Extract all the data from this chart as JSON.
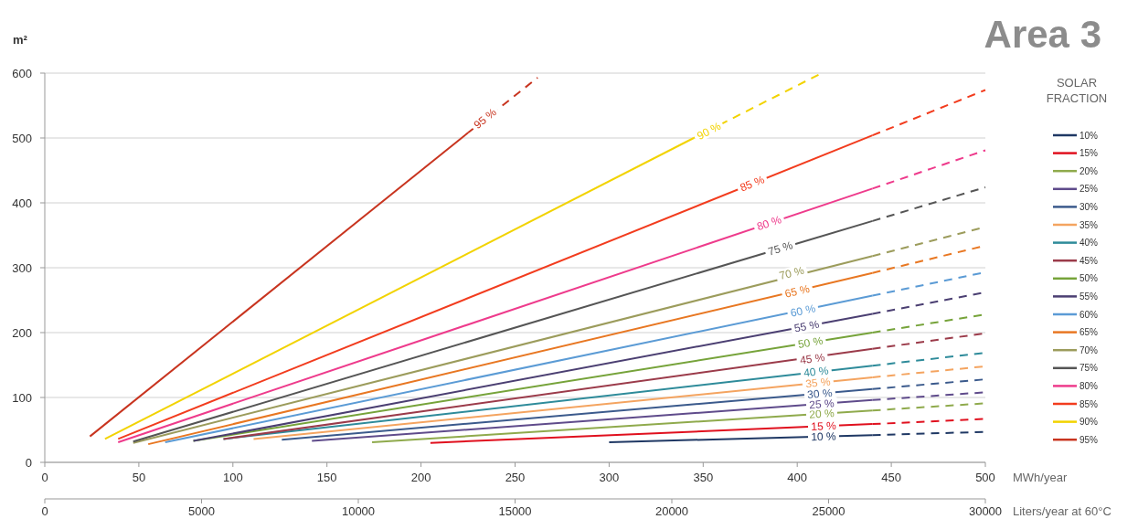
{
  "chart_data": {
    "type": "line",
    "title": "Area 3",
    "ylabel": "m²",
    "xlabel": "MWh/year",
    "x2label": "Liters/year at 60°C",
    "legend_title": "SOLAR FRACTION",
    "legend": "right",
    "grid": "y",
    "line_style": "solid",
    "marker": "none",
    "xlim": [
      0,
      500
    ],
    "xticks": [
      0,
      50,
      100,
      150,
      200,
      250,
      300,
      350,
      400,
      450,
      500
    ],
    "x2lim": [
      0,
      30000
    ],
    "x2ticks": [
      0,
      5000,
      10000,
      15000,
      20000,
      25000,
      30000
    ],
    "ylim": [
      0,
      600
    ],
    "yticks": [
      0,
      100,
      200,
      300,
      400,
      500,
      600
    ],
    "series": [
      {
        "name": "10%",
        "color": "#1f3864",
        "x": [
          300,
          440
        ],
        "values": [
          31,
          42
        ]
      },
      {
        "color": "#1f3864",
        "line_style": "dashed",
        "x": [
          440,
          500
        ],
        "values": [
          42,
          47
        ]
      },
      {
        "name": "15%",
        "color": "#e0101e",
        "x": [
          205,
          440
        ],
        "values": [
          30,
          59
        ]
      },
      {
        "color": "#e0101e",
        "line_style": "dashed",
        "x": [
          440,
          500
        ],
        "values": [
          59,
          67
        ]
      },
      {
        "name": "20%",
        "color": "#8faa4c",
        "x": [
          174,
          440
        ],
        "values": [
          31,
          80
        ]
      },
      {
        "color": "#8faa4c",
        "line_style": "dashed",
        "x": [
          440,
          500
        ],
        "values": [
          80,
          91
        ]
      },
      {
        "name": "25%",
        "color": "#5f4b8b",
        "x": [
          142,
          440
        ],
        "values": [
          33,
          96
        ]
      },
      {
        "color": "#5f4b8b",
        "line_style": "dashed",
        "x": [
          440,
          500
        ],
        "values": [
          96,
          108
        ]
      },
      {
        "name": "30%",
        "color": "#3b5a8c",
        "x": [
          126,
          440
        ],
        "values": [
          35,
          113
        ]
      },
      {
        "color": "#3b5a8c",
        "line_style": "dashed",
        "x": [
          440,
          500
        ],
        "values": [
          113,
          128
        ]
      },
      {
        "name": "35%",
        "color": "#f4a460",
        "x": [
          111,
          440
        ],
        "values": [
          36,
          131
        ]
      },
      {
        "color": "#f4a460",
        "line_style": "dashed",
        "x": [
          440,
          500
        ],
        "values": [
          131,
          148
        ]
      },
      {
        "name": "40%",
        "color": "#2e8b9a",
        "x": [
          95,
          440
        ],
        "values": [
          36,
          149
        ]
      },
      {
        "color": "#2e8b9a",
        "line_style": "dashed",
        "x": [
          440,
          500
        ],
        "values": [
          149,
          169
        ]
      },
      {
        "name": "45%",
        "color": "#9b3b4a",
        "x": [
          95,
          440
        ],
        "values": [
          36,
          175
        ]
      },
      {
        "color": "#9b3b4a",
        "line_style": "dashed",
        "x": [
          440,
          500
        ],
        "values": [
          175,
          199
        ]
      },
      {
        "name": "50%",
        "color": "#76a33a",
        "x": [
          79,
          440
        ],
        "values": [
          33,
          200
        ]
      },
      {
        "color": "#76a33a",
        "line_style": "dashed",
        "x": [
          440,
          500
        ],
        "values": [
          200,
          228
        ]
      },
      {
        "name": "55%",
        "color": "#4b3f72",
        "x": [
          79,
          440
        ],
        "values": [
          33,
          229
        ]
      },
      {
        "color": "#4b3f72",
        "line_style": "dashed",
        "x": [
          440,
          500
        ],
        "values": [
          229,
          262
        ]
      },
      {
        "name": "60%",
        "color": "#5b9bd5",
        "x": [
          64,
          440
        ],
        "values": [
          31,
          257
        ]
      },
      {
        "color": "#5b9bd5",
        "line_style": "dashed",
        "x": [
          440,
          500
        ],
        "values": [
          257,
          293
        ]
      },
      {
        "name": "65%",
        "color": "#e87722",
        "x": [
          55,
          440
        ],
        "values": [
          28,
          292
        ]
      },
      {
        "color": "#e87722",
        "line_style": "dashed",
        "x": [
          440,
          500
        ],
        "values": [
          292,
          334
        ]
      },
      {
        "name": "70%",
        "color": "#9c9c5c",
        "x": [
          47,
          440
        ],
        "values": [
          30,
          318
        ]
      },
      {
        "color": "#9c9c5c",
        "line_style": "dashed",
        "x": [
          440,
          500
        ],
        "values": [
          318,
          363
        ]
      },
      {
        "name": "75%",
        "color": "#555555",
        "x": [
          47,
          440
        ],
        "values": [
          32,
          372
        ]
      },
      {
        "color": "#555555",
        "line_style": "dashed",
        "x": [
          440,
          500
        ],
        "values": [
          372,
          424
        ]
      },
      {
        "name": "80%",
        "color": "#ee3b8c",
        "x": [
          39,
          440
        ],
        "values": [
          31,
          422
        ]
      },
      {
        "color": "#ee3b8c",
        "line_style": "dashed",
        "x": [
          440,
          500
        ],
        "values": [
          422,
          481
        ]
      },
      {
        "name": "85%",
        "color": "#f23c1e",
        "x": [
          39,
          440
        ],
        "values": [
          36,
          504
        ]
      },
      {
        "color": "#f23c1e",
        "line_style": "dashed",
        "x": [
          440,
          500
        ],
        "values": [
          504,
          574
        ]
      },
      {
        "name": "90%",
        "color": "#f2d300",
        "x": [
          32,
          345
        ],
        "values": [
          36,
          500
        ]
      },
      {
        "color": "#f2d300",
        "line_style": "dashed",
        "x": [
          345,
          413
        ],
        "values": [
          500,
          600
        ]
      },
      {
        "name": "95%",
        "color": "#c8341f",
        "x": [
          24,
          225
        ],
        "values": [
          40,
          508
        ]
      },
      {
        "color": "#c8341f",
        "line_style": "dashed",
        "x": [
          225,
          262
        ],
        "values": [
          508,
          593
        ]
      }
    ],
    "annotations": [
      {
        "text": "10 %",
        "x": 414,
        "y": 40
      },
      {
        "text": "15 %",
        "x": 414,
        "y": 56
      },
      {
        "text": "20 %",
        "x": 413,
        "y": 75
      },
      {
        "text": "25 %",
        "x": 413,
        "y": 90
      },
      {
        "text": "30 %",
        "x": 412,
        "y": 106
      },
      {
        "text": "35 %",
        "x": 411,
        "y": 123
      },
      {
        "text": "40 %",
        "x": 410,
        "y": 140
      },
      {
        "text": "45 %",
        "x": 408,
        "y": 160
      },
      {
        "text": "50 %",
        "x": 407,
        "y": 185
      },
      {
        "text": "55 %",
        "x": 405,
        "y": 210
      },
      {
        "text": "60 %",
        "x": 403,
        "y": 234
      },
      {
        "text": "65 %",
        "x": 400,
        "y": 264
      },
      {
        "text": "70 %",
        "x": 397,
        "y": 292
      },
      {
        "text": "75 %",
        "x": 391,
        "y": 330
      },
      {
        "text": "80 %",
        "x": 385,
        "y": 369
      },
      {
        "text": "85 %",
        "x": 376,
        "y": 430
      },
      {
        "text": "90 %",
        "x": 353,
        "y": 511
      },
      {
        "text": "95 %",
        "x": 234,
        "y": 530
      }
    ]
  }
}
